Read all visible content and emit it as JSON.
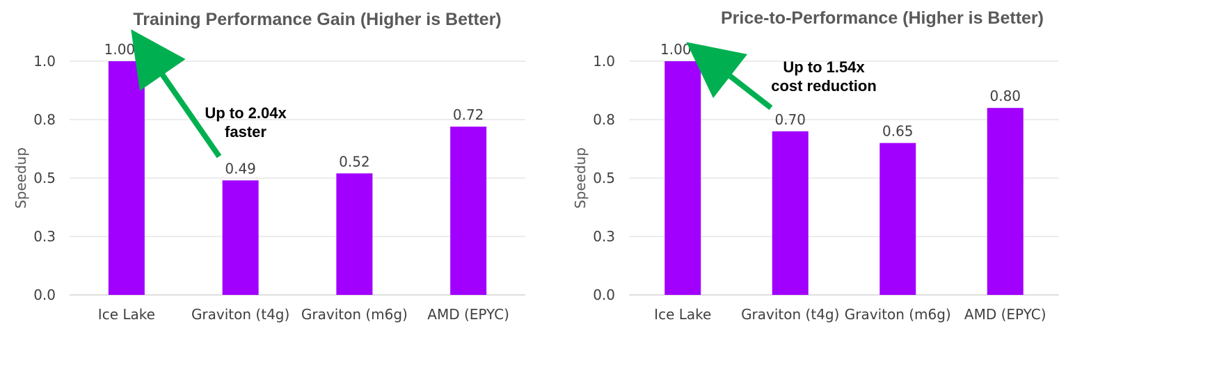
{
  "colors": {
    "bar": "#a100ff",
    "arrow": "#00b050"
  },
  "chart_data": [
    {
      "type": "bar",
      "title": "Training Performance Gain (Higher is Better)",
      "ylabel": "Speedup",
      "xlabel": "",
      "categories": [
        "Ice Lake",
        "Graviton (t4g)",
        "Graviton (m6g)",
        "AMD (EPYC)"
      ],
      "values": [
        1.0,
        0.49,
        0.52,
        0.72
      ],
      "data_labels": [
        "1.00",
        "0.49",
        "0.52",
        "0.72"
      ],
      "ylim": [
        0,
        1.0
      ],
      "yticks": [
        0.0,
        0.25,
        0.5,
        0.75,
        1.0
      ],
      "ytick_labels": [
        "0.0",
        "0.3",
        "0.5",
        "0.8",
        "1.0"
      ],
      "grid": true,
      "annotation": {
        "lines": [
          "Up to 2.04x",
          "faster"
        ]
      }
    },
    {
      "type": "bar",
      "title": "Price-to-Performance (Higher is Better)",
      "ylabel": "Speedup",
      "xlabel": "",
      "categories": [
        "Ice Lake",
        "Graviton (t4g)",
        "Graviton (m6g)",
        "AMD (EPYC)"
      ],
      "values": [
        1.0,
        0.7,
        0.65,
        0.8
      ],
      "data_labels": [
        "1.00",
        "0.70",
        "0.65",
        "0.80"
      ],
      "ylim": [
        0,
        1.0
      ],
      "yticks": [
        0.0,
        0.25,
        0.5,
        0.75,
        1.0
      ],
      "ytick_labels": [
        "0.0",
        "0.3",
        "0.5",
        "0.8",
        "1.0"
      ],
      "grid": true,
      "annotation": {
        "lines": [
          "Up to 1.54x",
          "cost reduction"
        ]
      }
    }
  ]
}
